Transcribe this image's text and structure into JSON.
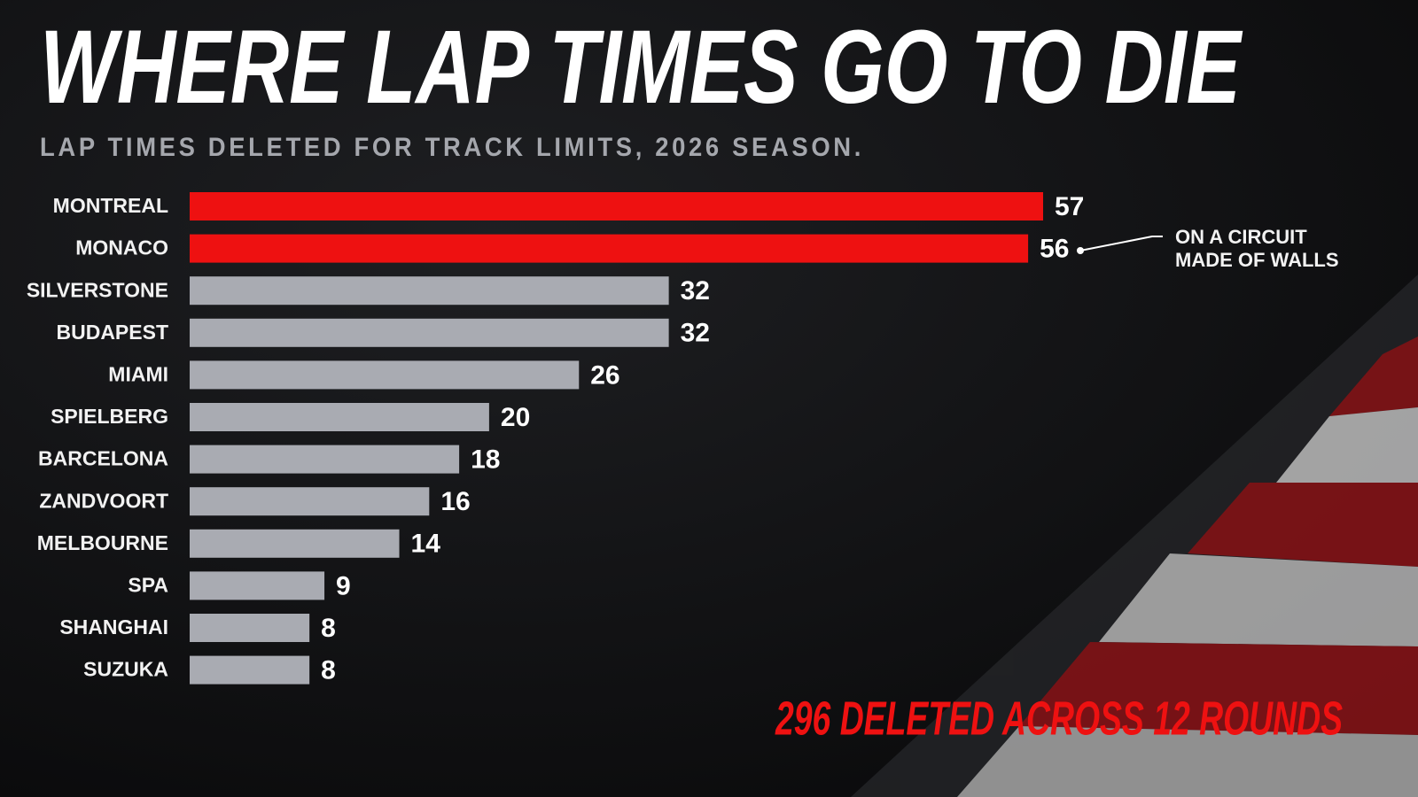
{
  "chart_data": {
    "type": "bar",
    "orientation": "horizontal",
    "title": "WHERE LAP TIMES GO TO DIE",
    "subtitle": "LAP TIMES DELETED FOR TRACK LIMITS, 2026 SEASON.",
    "categories": [
      "MONTREAL",
      "MONACO",
      "SILVERSTONE",
      "BUDAPEST",
      "MIAMI",
      "SPIELBERG",
      "BARCELONA",
      "ZANDVOORT",
      "MELBOURNE",
      "SPA",
      "SHANGHAI",
      "SUZUKA"
    ],
    "values": [
      57,
      56,
      32,
      32,
      26,
      20,
      18,
      16,
      14,
      9,
      8,
      8
    ],
    "colors": [
      "#ee1111",
      "#ee1111",
      "#a9abb2",
      "#a9abb2",
      "#a9abb2",
      "#a9abb2",
      "#a9abb2",
      "#a9abb2",
      "#a9abb2",
      "#a9abb2",
      "#a9abb2",
      "#a9abb2"
    ],
    "annotation": "ON A CIRCUIT MADE OF WALLS",
    "footer": "296 DELETED ACROSS 12 ROUNDS"
  }
}
